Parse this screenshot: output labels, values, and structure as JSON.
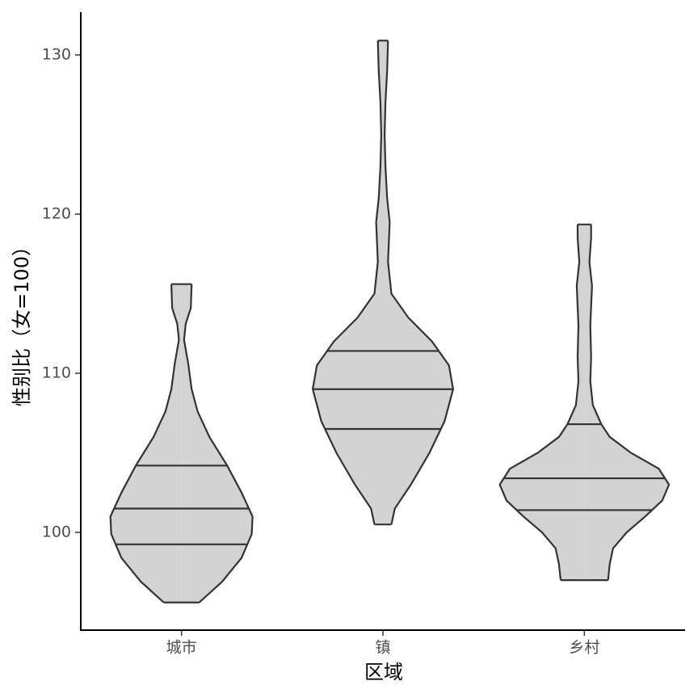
{
  "chart_data": {
    "type": "violin",
    "x_label": "区域",
    "y_label": "性别比（女=100）",
    "categories": [
      "城市",
      "镇",
      "乡村"
    ],
    "fill": "#d3d3d3",
    "stroke": "#333333",
    "violins": [
      {
        "density_y": [
          95.6,
          96.9,
          98.4,
          99.9,
          101,
          102.5,
          104.2,
          106,
          107.6,
          109,
          110.6,
          112.1,
          113.1,
          114.1,
          115.6
        ],
        "density": [
          0.21,
          0.48,
          0.71,
          0.83,
          0.84,
          0.71,
          0.54,
          0.33,
          0.19,
          0.12,
          0.08,
          0.03,
          0.05,
          0.11,
          0.12
        ],
        "quantiles": [
          99.25,
          101.5,
          104.2
        ]
      },
      {
        "density_y": [
          100.5,
          101.5,
          103,
          105,
          107,
          109,
          110.5,
          112,
          113.5,
          115,
          117,
          119.5,
          121,
          123,
          125,
          127,
          129,
          130.9
        ],
        "density": [
          0.1,
          0.14,
          0.33,
          0.55,
          0.73,
          0.83,
          0.78,
          0.58,
          0.3,
          0.1,
          0.06,
          0.08,
          0.05,
          0.03,
          0.02,
          0.03,
          0.05,
          0.06
        ],
        "quantiles": [
          106.5,
          109,
          111.4
        ]
      },
      {
        "density_y": [
          97,
          98,
          99,
          100,
          101,
          102,
          103,
          104,
          105,
          106,
          106.8,
          108,
          109.5,
          111,
          113,
          115.5,
          117,
          118.5,
          119.35
        ],
        "density": [
          0.28,
          0.3,
          0.34,
          0.5,
          0.72,
          0.92,
          1.0,
          0.88,
          0.55,
          0.3,
          0.2,
          0.1,
          0.07,
          0.08,
          0.07,
          0.09,
          0.06,
          0.08,
          0.08
        ],
        "quantiles": [
          101.4,
          103.4,
          106.8
        ]
      }
    ],
    "ylim": [
      93.86,
      132.69
    ],
    "yticks": [
      100,
      110,
      120,
      130
    ]
  }
}
